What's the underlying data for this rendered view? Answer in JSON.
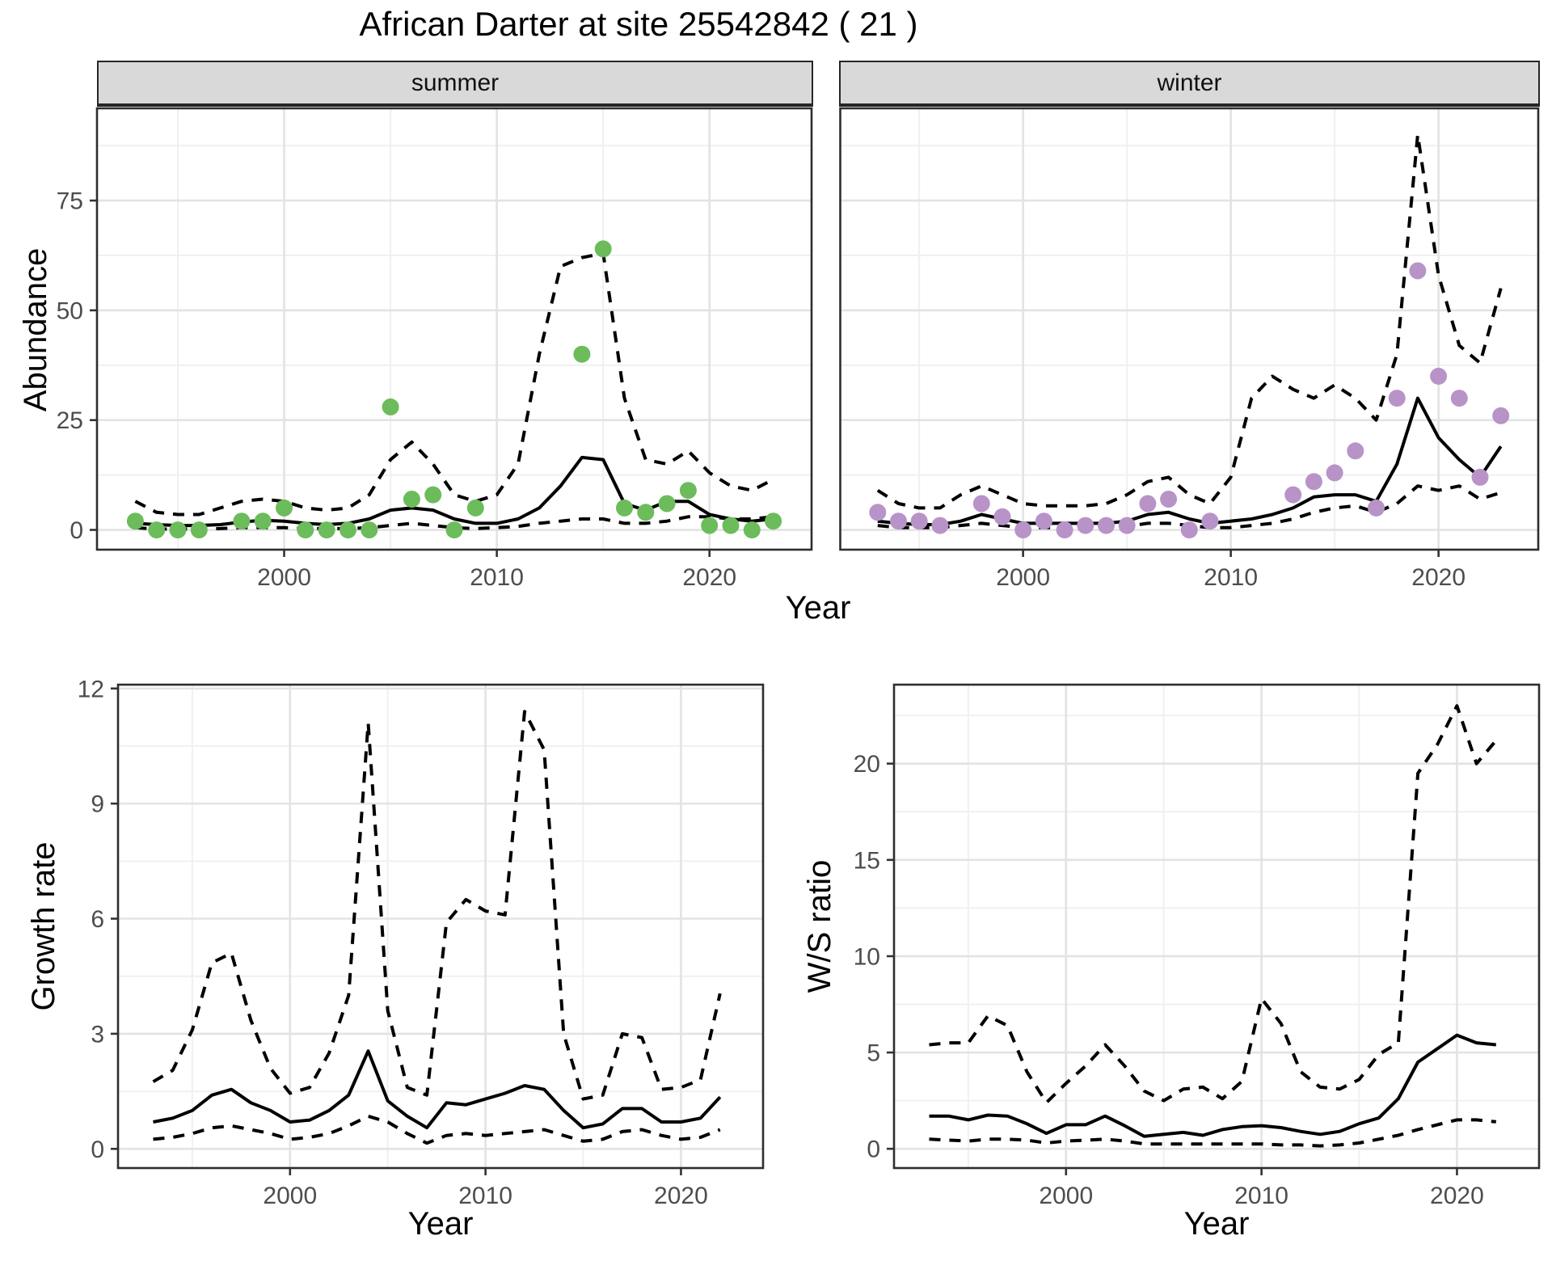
{
  "title": "African Darter at site 25542842 ( 21 )",
  "colors": {
    "summer_point": "#6cbc5c",
    "winter_point": "#b893c8",
    "line": "#000000",
    "grid_major": "#e3e3e3",
    "grid_minor": "#f0f0f0",
    "panel_border": "#2e2e2e",
    "strip_bg": "#d9d9d9",
    "tick_text": "#4d4d4d"
  },
  "chart_data": [
    {
      "id": "summer",
      "type": "line",
      "facet_label": "summer",
      "xlabel": "Year",
      "ylabel": "Abundance",
      "xlim": [
        1991.2,
        2024.8
      ],
      "ylim": [
        -4.5,
        96
      ],
      "xticks": [
        2000,
        2010,
        2020
      ],
      "xminor": [
        1995,
        2005,
        2015
      ],
      "yticks": [
        0,
        25,
        50,
        75
      ],
      "yminor": [
        12.5,
        37.5,
        62.5,
        87.5
      ],
      "x": [
        1993,
        1994,
        1995,
        1996,
        1997,
        1998,
        1999,
        2000,
        2001,
        2002,
        2003,
        2004,
        2005,
        2006,
        2007,
        2008,
        2009,
        2010,
        2011,
        2012,
        2013,
        2014,
        2015,
        2016,
        2017,
        2018,
        2019,
        2020,
        2021,
        2022,
        2023
      ],
      "series": [
        {
          "name": "fitted",
          "style": "solid",
          "values": [
            1.5,
            1.2,
            1.0,
            1.0,
            1.2,
            1.8,
            2.2,
            2.0,
            1.5,
            1.2,
            1.5,
            2.5,
            4.5,
            5.0,
            4.5,
            2.5,
            1.5,
            1.5,
            2.5,
            5.0,
            10.0,
            16.5,
            16.0,
            6.0,
            4.5,
            6.5,
            6.5,
            3.5,
            2.5,
            2.0,
            2.5
          ]
        },
        {
          "name": "upper_ci",
          "style": "dashed",
          "values": [
            6.5,
            4.0,
            3.5,
            3.5,
            5.0,
            6.5,
            7.0,
            6.5,
            5.0,
            4.5,
            5.0,
            8.0,
            16.0,
            20.0,
            15.0,
            8.0,
            6.5,
            8.0,
            15.0,
            40.0,
            60.0,
            62.0,
            63.0,
            30.0,
            16.0,
            15.0,
            18.0,
            13.0,
            10.0,
            9.0,
            11.5
          ]
        },
        {
          "name": "lower_ci",
          "style": "dashed",
          "values": [
            0.5,
            0.2,
            0.2,
            0.2,
            0.3,
            0.5,
            0.5,
            0.5,
            0.3,
            0.3,
            0.3,
            0.5,
            1.0,
            1.5,
            1.0,
            0.5,
            0.3,
            0.5,
            0.8,
            1.5,
            2.0,
            2.5,
            2.5,
            1.5,
            1.5,
            2.0,
            3.0,
            3.0,
            2.5,
            2.5,
            3.0
          ]
        }
      ],
      "points": {
        "name": "observed-counts",
        "color": "summer_point",
        "data": [
          [
            1993,
            2
          ],
          [
            1994,
            0
          ],
          [
            1995,
            0
          ],
          [
            1996,
            0
          ],
          [
            1998,
            2
          ],
          [
            1999,
            2
          ],
          [
            2000,
            5
          ],
          [
            2001,
            0
          ],
          [
            2002,
            0
          ],
          [
            2003,
            0
          ],
          [
            2004,
            0
          ],
          [
            2005,
            28
          ],
          [
            2006,
            7
          ],
          [
            2007,
            8
          ],
          [
            2008,
            0
          ],
          [
            2009,
            5
          ],
          [
            2014,
            40
          ],
          [
            2015,
            64
          ],
          [
            2016,
            5
          ],
          [
            2017,
            4
          ],
          [
            2018,
            6
          ],
          [
            2019,
            9
          ],
          [
            2020,
            1
          ],
          [
            2021,
            1
          ],
          [
            2022,
            0
          ],
          [
            2023,
            2
          ]
        ]
      }
    },
    {
      "id": "winter",
      "type": "line",
      "facet_label": "winter",
      "xlabel": "Year",
      "ylabel": "Abundance",
      "xlim": [
        1991.2,
        2024.8
      ],
      "ylim": [
        -4.5,
        96
      ],
      "xticks": [
        2000,
        2010,
        2020
      ],
      "xminor": [
        1995,
        2005,
        2015
      ],
      "yticks": [
        0,
        25,
        50,
        75
      ],
      "yminor": [
        12.5,
        37.5,
        62.5,
        87.5
      ],
      "x": [
        1993,
        1994,
        1995,
        1996,
        1997,
        1998,
        1999,
        2000,
        2001,
        2002,
        2003,
        2004,
        2005,
        2006,
        2007,
        2008,
        2009,
        2010,
        2011,
        2012,
        2013,
        2014,
        2015,
        2016,
        2017,
        2018,
        2019,
        2020,
        2021,
        2022,
        2023
      ],
      "series": [
        {
          "name": "fitted",
          "style": "solid",
          "values": [
            2.0,
            1.5,
            1.2,
            1.2,
            2.0,
            3.5,
            2.5,
            1.5,
            1.5,
            1.5,
            1.5,
            1.5,
            2.0,
            3.5,
            4.0,
            2.5,
            1.5,
            2.0,
            2.5,
            3.5,
            5.0,
            7.5,
            8.0,
            8.0,
            6.5,
            15.0,
            30.0,
            21.0,
            16.0,
            12.0,
            19.0
          ]
        },
        {
          "name": "upper_ci",
          "style": "dashed",
          "values": [
            9.0,
            6.0,
            5.0,
            5.0,
            8.0,
            10.0,
            8.0,
            6.0,
            5.5,
            5.5,
            5.5,
            6.0,
            8.0,
            11.0,
            12.0,
            8.0,
            6.0,
            12.0,
            30.0,
            35.0,
            32.0,
            30.0,
            33.0,
            30.0,
            25.0,
            40.0,
            90.0,
            58.0,
            42.0,
            38.0,
            55.0
          ]
        },
        {
          "name": "lower_ci",
          "style": "dashed",
          "values": [
            1.0,
            0.5,
            0.5,
            0.5,
            1.0,
            1.5,
            1.0,
            0.5,
            0.5,
            0.5,
            0.5,
            0.5,
            0.8,
            1.5,
            1.5,
            1.0,
            0.5,
            0.5,
            1.0,
            1.5,
            2.5,
            4.0,
            5.0,
            5.5,
            4.0,
            6.0,
            10.0,
            9.0,
            10.0,
            7.0,
            8.5
          ]
        }
      ],
      "points": {
        "name": "observed-counts",
        "color": "winter_point",
        "data": [
          [
            1993,
            4
          ],
          [
            1994,
            2
          ],
          [
            1995,
            2
          ],
          [
            1996,
            1
          ],
          [
            1998,
            6
          ],
          [
            1999,
            3
          ],
          [
            2000,
            0
          ],
          [
            2001,
            2
          ],
          [
            2002,
            0
          ],
          [
            2003,
            1
          ],
          [
            2004,
            1
          ],
          [
            2005,
            1
          ],
          [
            2006,
            6
          ],
          [
            2007,
            7
          ],
          [
            2008,
            0
          ],
          [
            2009,
            2
          ],
          [
            2013,
            8
          ],
          [
            2014,
            11
          ],
          [
            2015,
            13
          ],
          [
            2016,
            18
          ],
          [
            2017,
            5
          ],
          [
            2018,
            30
          ],
          [
            2019,
            59
          ],
          [
            2020,
            35
          ],
          [
            2021,
            30
          ],
          [
            2022,
            12
          ],
          [
            2023,
            26
          ]
        ]
      }
    },
    {
      "id": "growth",
      "type": "line",
      "facet_label": "",
      "xlabel": "Year",
      "ylabel": "Growth rate",
      "xlim": [
        1991.2,
        2024.2
      ],
      "ylim": [
        -0.5,
        12.1
      ],
      "xticks": [
        2000,
        2010,
        2020
      ],
      "xminor": [
        1995,
        2005,
        2015
      ],
      "yticks": [
        0,
        3,
        6,
        9,
        12
      ],
      "yminor": [
        1.5,
        4.5,
        7.5,
        10.5
      ],
      "x": [
        1993,
        1994,
        1995,
        1996,
        1997,
        1998,
        1999,
        2000,
        2001,
        2002,
        2003,
        2004,
        2005,
        2006,
        2007,
        2008,
        2009,
        2010,
        2011,
        2012,
        2013,
        2014,
        2015,
        2016,
        2017,
        2018,
        2019,
        2020,
        2021,
        2022
      ],
      "series": [
        {
          "name": "fitted",
          "style": "solid",
          "values": [
            0.7,
            0.8,
            1.0,
            1.4,
            1.55,
            1.2,
            1.0,
            0.7,
            0.75,
            1.0,
            1.4,
            2.55,
            1.25,
            0.85,
            0.55,
            1.2,
            1.15,
            1.3,
            1.45,
            1.65,
            1.55,
            1.0,
            0.55,
            0.65,
            1.05,
            1.05,
            0.7,
            0.7,
            0.8,
            1.35
          ]
        },
        {
          "name": "upper_ci",
          "style": "dashed",
          "values": [
            1.75,
            2.05,
            3.1,
            4.85,
            5.1,
            3.35,
            2.1,
            1.45,
            1.6,
            2.5,
            4.0,
            11.1,
            3.6,
            1.6,
            1.4,
            5.9,
            6.5,
            6.2,
            6.1,
            11.4,
            10.4,
            3.0,
            1.3,
            1.4,
            3.0,
            2.9,
            1.55,
            1.6,
            1.8,
            4.05
          ]
        },
        {
          "name": "lower_ci",
          "style": "dashed",
          "values": [
            0.25,
            0.3,
            0.4,
            0.55,
            0.6,
            0.5,
            0.4,
            0.25,
            0.3,
            0.4,
            0.6,
            0.85,
            0.7,
            0.4,
            0.15,
            0.35,
            0.4,
            0.35,
            0.4,
            0.45,
            0.5,
            0.35,
            0.2,
            0.25,
            0.45,
            0.5,
            0.35,
            0.25,
            0.3,
            0.5
          ]
        }
      ],
      "points": null
    },
    {
      "id": "ws",
      "type": "line",
      "facet_label": "",
      "xlabel": "Year",
      "ylabel": "W/S ratio",
      "xlim": [
        1991.2,
        2024.2
      ],
      "ylim": [
        -1.0,
        24.1
      ],
      "xticks": [
        2000,
        2010,
        2020
      ],
      "xminor": [
        1995,
        2005,
        2015
      ],
      "yticks": [
        0,
        5,
        10,
        15,
        20
      ],
      "yminor": [
        2.5,
        7.5,
        12.5,
        17.5,
        22.5
      ],
      "x": [
        1993,
        1994,
        1995,
        1996,
        1997,
        1998,
        1999,
        2000,
        2001,
        2002,
        2003,
        2004,
        2005,
        2006,
        2007,
        2008,
        2009,
        2010,
        2011,
        2012,
        2013,
        2014,
        2015,
        2016,
        2017,
        2018,
        2019,
        2020,
        2021,
        2022
      ],
      "series": [
        {
          "name": "fitted",
          "style": "solid",
          "values": [
            1.7,
            1.7,
            1.5,
            1.75,
            1.7,
            1.3,
            0.8,
            1.25,
            1.25,
            1.7,
            1.2,
            0.65,
            0.75,
            0.85,
            0.7,
            1.0,
            1.15,
            1.2,
            1.1,
            0.9,
            0.75,
            0.9,
            1.3,
            1.6,
            2.6,
            4.5,
            5.2,
            5.9,
            5.5,
            5.4
          ]
        },
        {
          "name": "upper_ci",
          "style": "dashed",
          "values": [
            5.4,
            5.5,
            5.5,
            6.9,
            6.4,
            4.0,
            2.4,
            3.4,
            4.3,
            5.4,
            4.3,
            3.0,
            2.5,
            3.1,
            3.2,
            2.6,
            3.5,
            7.8,
            6.5,
            4.0,
            3.2,
            3.1,
            3.6,
            4.9,
            5.5,
            19.5,
            21.0,
            23.0,
            20.0,
            21.2
          ]
        },
        {
          "name": "lower_ci",
          "style": "dashed",
          "values": [
            0.5,
            0.45,
            0.4,
            0.5,
            0.5,
            0.45,
            0.3,
            0.4,
            0.45,
            0.5,
            0.4,
            0.25,
            0.25,
            0.25,
            0.25,
            0.25,
            0.25,
            0.25,
            0.2,
            0.2,
            0.15,
            0.2,
            0.3,
            0.5,
            0.7,
            1.0,
            1.25,
            1.5,
            1.5,
            1.4
          ]
        }
      ],
      "points": null
    }
  ]
}
